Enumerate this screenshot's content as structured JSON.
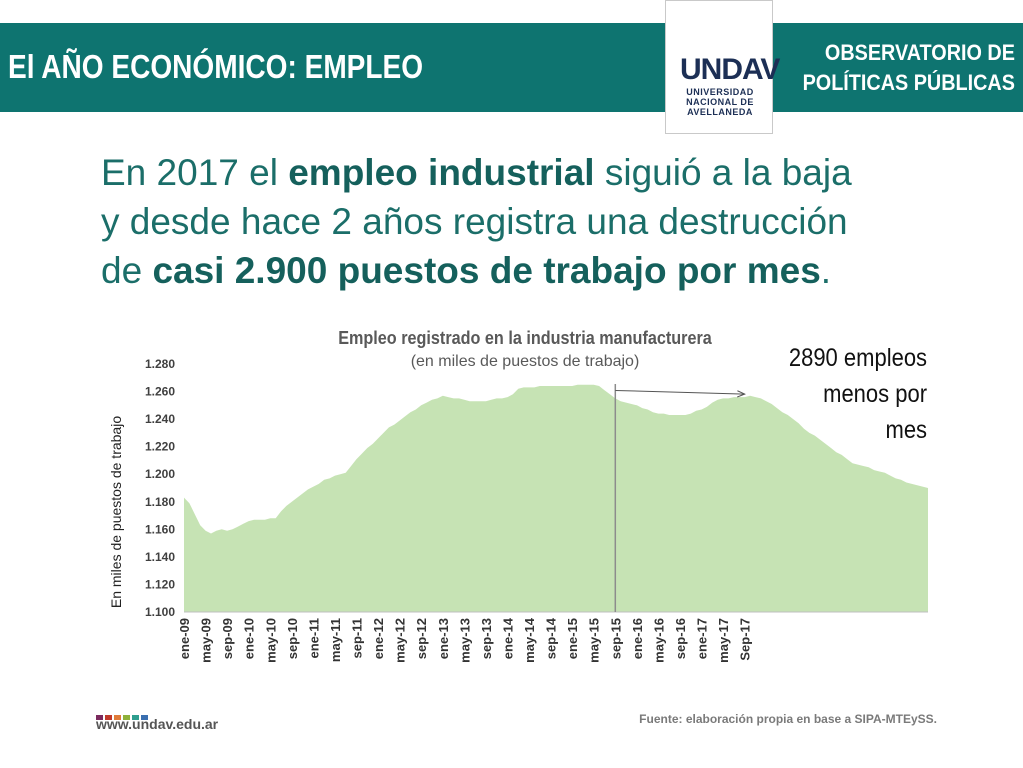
{
  "header": {
    "title": "El AÑO ECONÓMICO: EMPLEO",
    "right_line1": "OBSERVATORIO DE",
    "right_line2": "POLÍTICAS PÚBLICAS",
    "bg_color": "#0e7470"
  },
  "logo": {
    "mark": "UNDAV",
    "line1": "UNIVERSIDAD",
    "line2": "NACIONAL DE",
    "line3": "AVELLANEDA"
  },
  "headline": {
    "l1_pre": "En 2017 el ",
    "l1_bold": "empleo industrial",
    "l1_post": " siguió a la baja",
    "l2": "y desde hace 2 años registra una destrucción",
    "l3_pre": "de ",
    "l3_bold": "casi 2.900 puestos de trabajo por mes",
    "l3_post": "."
  },
  "chart_data": {
    "type": "area",
    "title": "Empleo registrado en la industria manufacturera",
    "subtitle": "(en miles de puestos de trabajo)",
    "ylabel": "En miles de puestos de trabajo",
    "ylim": [
      1100,
      1280
    ],
    "yticks": [
      1100,
      1120,
      1140,
      1160,
      1180,
      1200,
      1220,
      1240,
      1260,
      1280
    ],
    "ytick_labels": [
      "1.100",
      "1.120",
      "1.140",
      "1.160",
      "1.180",
      "1.200",
      "1.220",
      "1.240",
      "1.260",
      "1.280"
    ],
    "xtick_labels": [
      "ene-09",
      "may-09",
      "sep-09",
      "ene-10",
      "may-10",
      "sep-10",
      "ene-11",
      "may-11",
      "sep-11",
      "ene-12",
      "may-12",
      "sep-12",
      "ene-13",
      "may-13",
      "sep-13",
      "ene-14",
      "may-14",
      "sep-14",
      "ene-15",
      "may-15",
      "sep-15",
      "ene-16",
      "may-16",
      "sep-16",
      "ene-17",
      "may-17",
      "Sep-17"
    ],
    "series": [
      {
        "color": "#c6e3b4",
        "values": [
          1183,
          1179,
          1171,
          1163,
          1159,
          1157,
          1159,
          1160,
          1159,
          1160,
          1162,
          1164,
          1166,
          1167,
          1167,
          1167,
          1168,
          1168,
          1173,
          1177,
          1180,
          1183,
          1186,
          1189,
          1191,
          1193,
          1196,
          1197,
          1199,
          1200,
          1201,
          1206,
          1211,
          1215,
          1219,
          1222,
          1226,
          1230,
          1234,
          1236,
          1239,
          1242,
          1245,
          1247,
          1250,
          1252,
          1254,
          1255,
          1257,
          1256,
          1255,
          1255,
          1254,
          1253,
          1253,
          1253,
          1253,
          1254,
          1255,
          1255,
          1256,
          1258,
          1262,
          1263,
          1263,
          1263,
          1264,
          1264,
          1264,
          1264,
          1264,
          1264,
          1264,
          1265,
          1265,
          1265,
          1265,
          1264,
          1261,
          1258,
          1255,
          1253,
          1252,
          1251,
          1250,
          1248,
          1247,
          1245,
          1244,
          1244,
          1243,
          1243,
          1243,
          1243,
          1244,
          1246,
          1247,
          1249,
          1252,
          1254,
          1255,
          1255,
          1256,
          1256,
          1256,
          1257,
          1256,
          1255,
          1253,
          1251,
          1248,
          1245,
          1243,
          1240,
          1237,
          1233,
          1230,
          1228,
          1225,
          1222,
          1219,
          1216,
          1214,
          1211,
          1208,
          1207,
          1206,
          1205,
          1203,
          1202,
          1201,
          1199,
          1197,
          1196,
          1194,
          1193,
          1192,
          1191,
          1190
        ]
      }
    ],
    "annotation": {
      "lines": [
        "2890 empleos",
        "menos por",
        "mes"
      ],
      "start_label": "sep-15",
      "end_label": "Sep-17"
    },
    "grid": false
  },
  "footer": {
    "url": "www.undav.edu.ar",
    "source": "Fuente: elaboración propia en base a SIPA-MTEySS.",
    "dot_colors": [
      "#7b2a5e",
      "#c0392b",
      "#e07b39",
      "#8fb13a",
      "#2e9e8f",
      "#3a6fb0"
    ]
  }
}
